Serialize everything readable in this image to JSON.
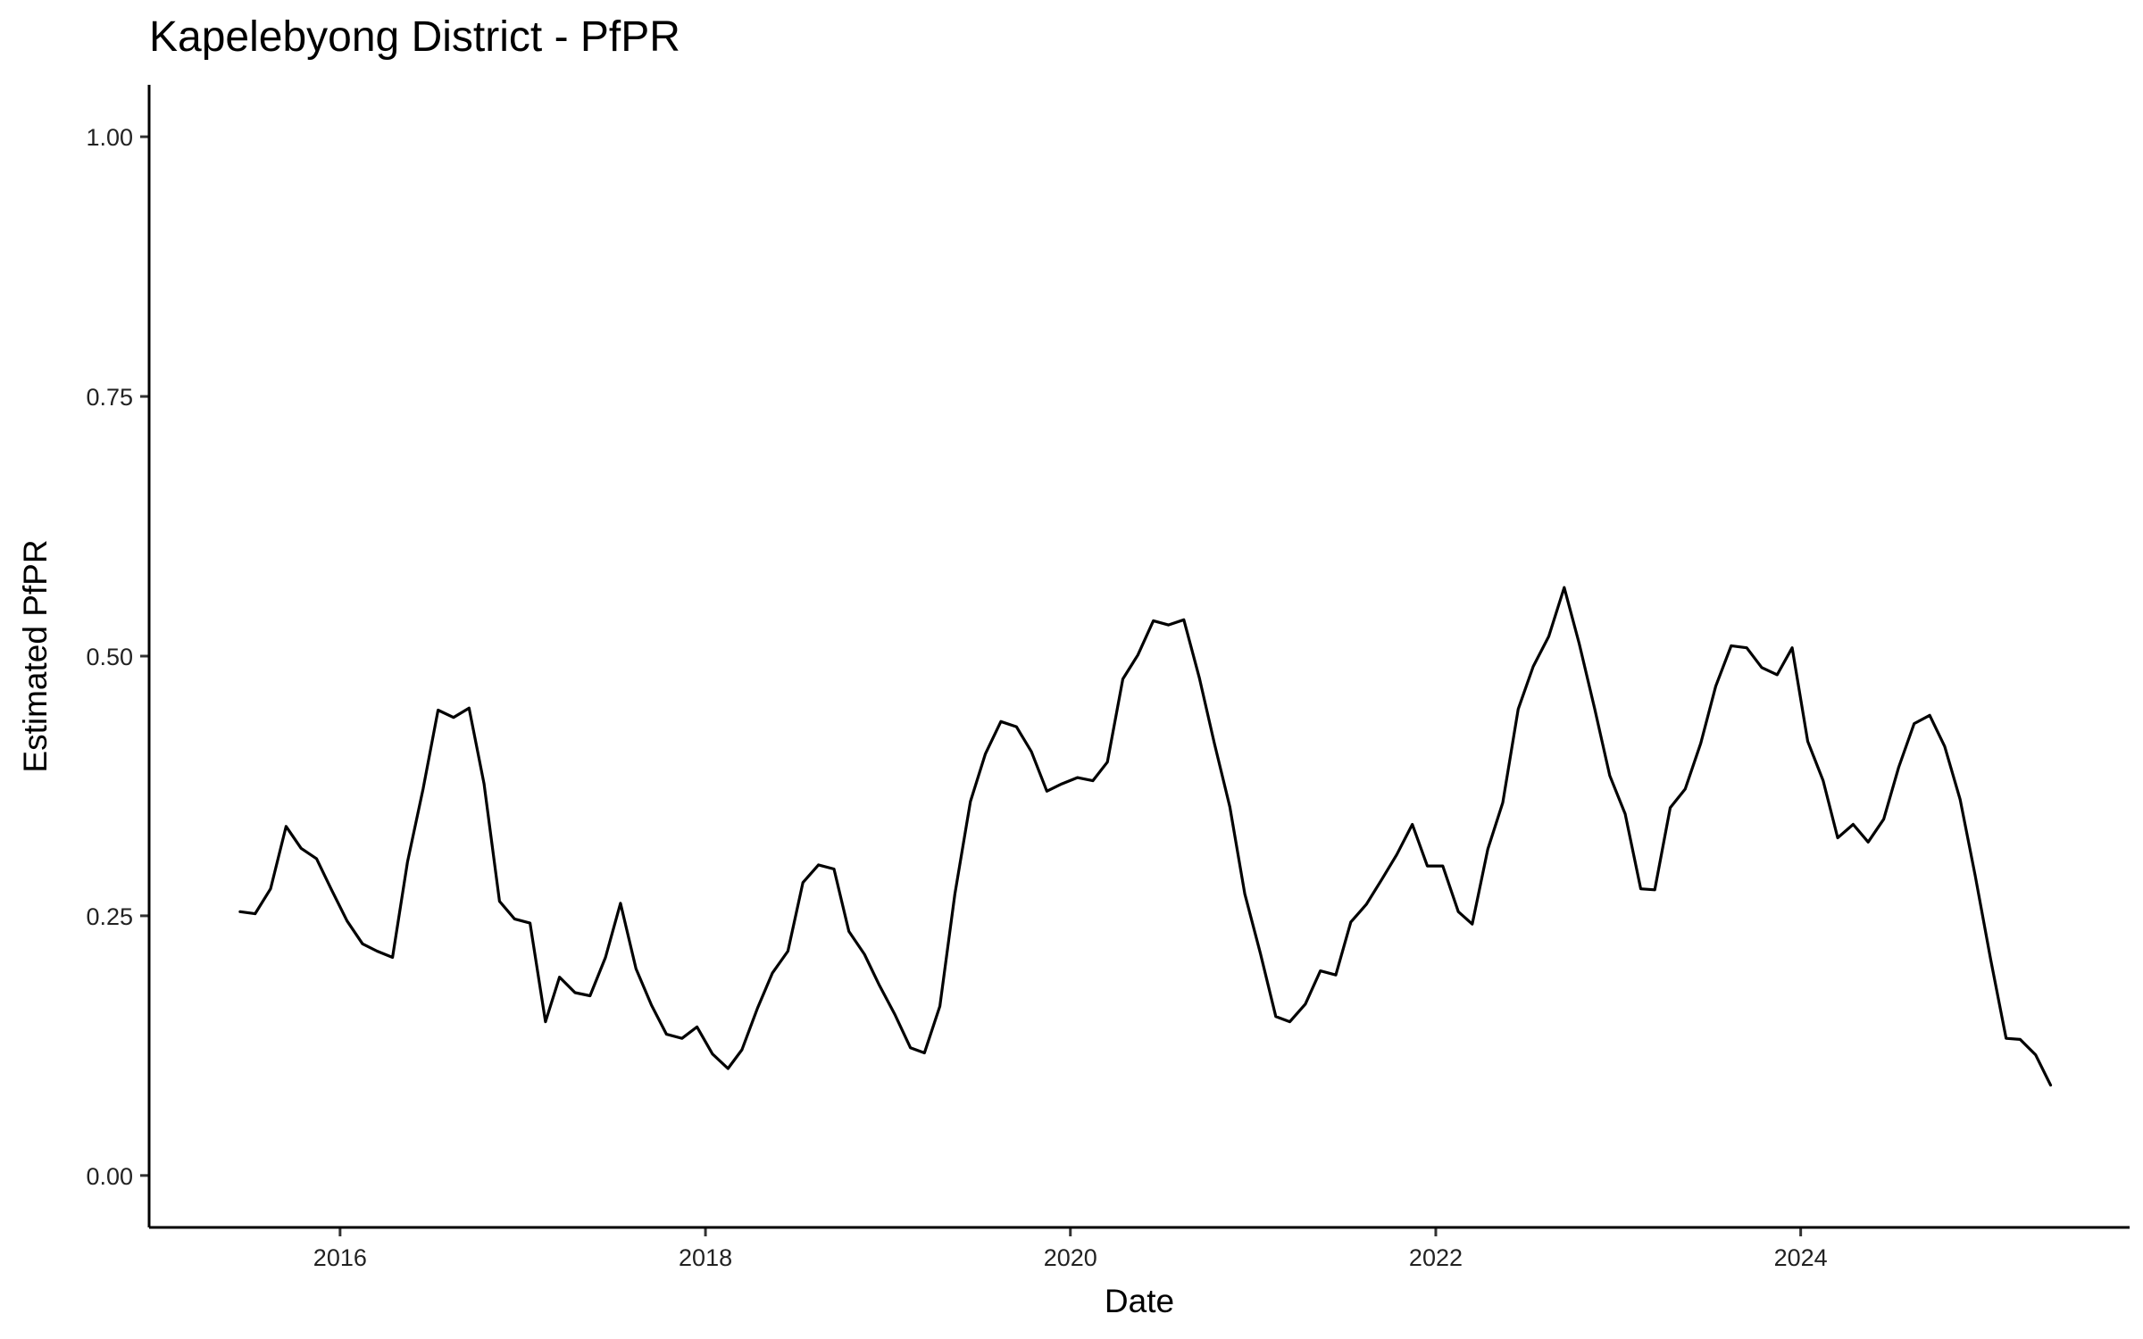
{
  "chart_data": {
    "type": "line",
    "title": "Kapelebyong District - PfPR",
    "xlabel": "Date",
    "ylabel": "Estimated PfPR",
    "xlim": [
      "2014-12-15",
      "2025-10-20"
    ],
    "ylim": [
      -0.05,
      1.05
    ],
    "grid": false,
    "x_ticks": [
      {
        "date": "2016-01-01",
        "label": "2016"
      },
      {
        "date": "2018-01-01",
        "label": "2018"
      },
      {
        "date": "2020-01-01",
        "label": "2020"
      },
      {
        "date": "2022-01-01",
        "label": "2022"
      },
      {
        "date": "2024-01-01",
        "label": "2024"
      }
    ],
    "y_ticks": [
      {
        "value": 0.0,
        "label": "0.00"
      },
      {
        "value": 0.25,
        "label": "0.25"
      },
      {
        "value": 0.5,
        "label": "0.50"
      },
      {
        "value": 0.75,
        "label": "0.75"
      },
      {
        "value": 1.0,
        "label": "1.00"
      }
    ],
    "line_color": "#000000",
    "series": [
      {
        "x": [
          "2015-06",
          "2015-07",
          "2015-08",
          "2015-09",
          "2015-10",
          "2015-11",
          "2015-12",
          "2016-01",
          "2016-02",
          "2016-03",
          "2016-04",
          "2016-05",
          "2016-06",
          "2016-07",
          "2016-08",
          "2016-09",
          "2016-10",
          "2016-11",
          "2016-12",
          "2017-01",
          "2017-02",
          "2017-03",
          "2017-04",
          "2017-05",
          "2017-06",
          "2017-07",
          "2017-08",
          "2017-09",
          "2017-10",
          "2017-11",
          "2017-12",
          "2018-01",
          "2018-02",
          "2018-03",
          "2018-04",
          "2018-05",
          "2018-06",
          "2018-07",
          "2018-08",
          "2018-09",
          "2018-10",
          "2018-11",
          "2018-12",
          "2019-01",
          "2019-02",
          "2019-03",
          "2019-04",
          "2019-05",
          "2019-06",
          "2019-07",
          "2019-08",
          "2019-09",
          "2019-10",
          "2019-11",
          "2019-12",
          "2020-01",
          "2020-02",
          "2020-03",
          "2020-04",
          "2020-05",
          "2020-06",
          "2020-07",
          "2020-08",
          "2020-09",
          "2020-10",
          "2020-11",
          "2020-12",
          "2021-01",
          "2021-02",
          "2021-03",
          "2021-04",
          "2021-05",
          "2021-06",
          "2021-07",
          "2021-08",
          "2021-09",
          "2021-10",
          "2021-11",
          "2021-12",
          "2022-01",
          "2022-02",
          "2022-03",
          "2022-04",
          "2022-05",
          "2022-06",
          "2022-07",
          "2022-08",
          "2022-09",
          "2022-10",
          "2022-11",
          "2022-12",
          "2023-01",
          "2023-02",
          "2023-03",
          "2023-04",
          "2023-05",
          "2023-06",
          "2023-07",
          "2023-08",
          "2023-09",
          "2023-10",
          "2023-11",
          "2023-12",
          "2024-01",
          "2024-02",
          "2024-03",
          "2024-04",
          "2024-05",
          "2024-06",
          "2024-07",
          "2024-08",
          "2024-09",
          "2024-10",
          "2024-11",
          "2024-12",
          "2025-01",
          "2025-02",
          "2025-03",
          "2025-04",
          "2025-05"
        ],
        "y": [
          0.254,
          0.252,
          0.276,
          0.336,
          0.315,
          0.305,
          0.275,
          0.245,
          0.223,
          0.216,
          0.21,
          0.302,
          0.372,
          0.448,
          0.441,
          0.45,
          0.377,
          0.264,
          0.247,
          0.243,
          0.148,
          0.191,
          0.176,
          0.173,
          0.21,
          0.262,
          0.199,
          0.164,
          0.136,
          0.132,
          0.143,
          0.117,
          0.103,
          0.121,
          0.161,
          0.195,
          0.216,
          0.282,
          0.299,
          0.295,
          0.235,
          0.213,
          0.183,
          0.155,
          0.123,
          0.118,
          0.163,
          0.271,
          0.36,
          0.406,
          0.437,
          0.432,
          0.408,
          0.37,
          0.377,
          0.383,
          0.38,
          0.398,
          0.478,
          0.501,
          0.534,
          0.53,
          0.535,
          0.479,
          0.416,
          0.355,
          0.271,
          0.214,
          0.153,
          0.148,
          0.165,
          0.197,
          0.193,
          0.244,
          0.261,
          0.285,
          0.309,
          0.338,
          0.298,
          0.298,
          0.254,
          0.242,
          0.314,
          0.359,
          0.449,
          0.49,
          0.519,
          0.566,
          0.512,
          0.449,
          0.385,
          0.348,
          0.276,
          0.275,
          0.354,
          0.372,
          0.416,
          0.471,
          0.51,
          0.508,
          0.489,
          0.482,
          0.508,
          0.418,
          0.38,
          0.325,
          0.338,
          0.321,
          0.343,
          0.393,
          0.435,
          0.443,
          0.413,
          0.362,
          0.289,
          0.208,
          0.132,
          0.131,
          0.116,
          0.087
        ]
      }
    ]
  }
}
